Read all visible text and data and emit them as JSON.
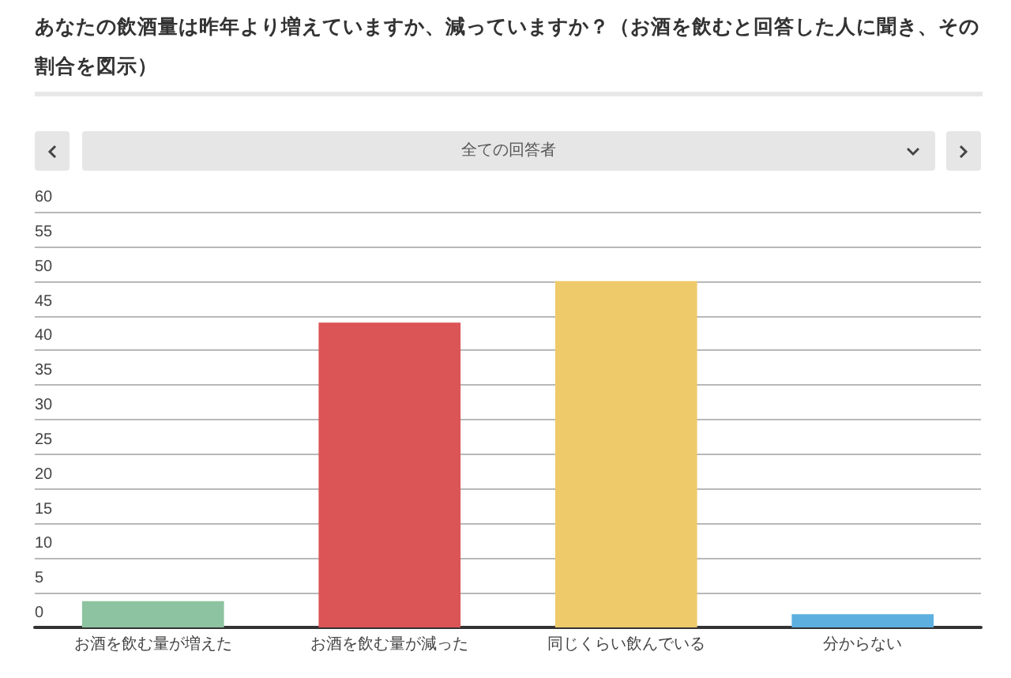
{
  "chart_data": {
    "type": "bar",
    "title": "あなたの飲酒量は昨年より増えていますか、減っていますか？（お酒を飲むと回答した人に聞き、その割合を図示）",
    "subtitle": "全ての回答者",
    "categories": [
      "お酒を飲む量が増えた",
      "お酒を飲む量が減った",
      "同じくらい飲んでいる",
      "分からない"
    ],
    "values": [
      3.8,
      44,
      50,
      1.9
    ],
    "colors": [
      "#8dc3a0",
      "#db5456",
      "#eeca6a",
      "#5dafe0"
    ],
    "ylim": [
      0,
      60
    ],
    "yticks": [
      0,
      5,
      10,
      15,
      20,
      25,
      30,
      35,
      40,
      45,
      50,
      55,
      60
    ],
    "grid": "y"
  }
}
